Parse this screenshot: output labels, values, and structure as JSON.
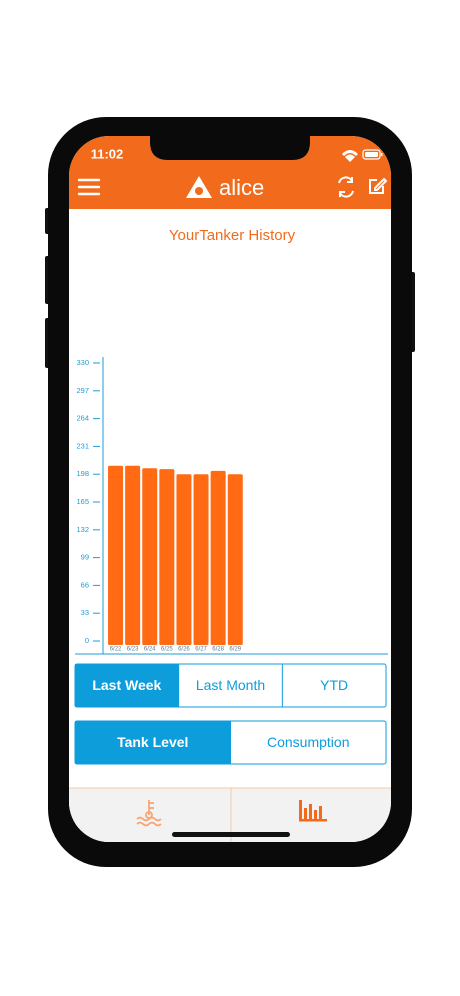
{
  "status_bar": {
    "time": "11:02"
  },
  "header": {
    "title": "alice"
  },
  "chart_data": {
    "type": "bar",
    "title": "YourTanker History",
    "categories": [
      "6/22",
      "6/23",
      "6/24",
      "6/25",
      "6/26",
      "6/27",
      "6/28",
      "6/29"
    ],
    "values": [
      208,
      208,
      205,
      204,
      198,
      198,
      202,
      198
    ],
    "color": "#ff6a13",
    "axis_color": "#1e9bd7",
    "ylim": [
      0,
      330
    ],
    "yticks": [
      0,
      33,
      66,
      99,
      132,
      165,
      198,
      231,
      264,
      297,
      330
    ]
  },
  "period_tabs": {
    "items": [
      "Last Week",
      "Last Month",
      "YTD"
    ],
    "selected_index": 0
  },
  "mode_tabs": {
    "items": [
      "Tank Level",
      "Consumption"
    ],
    "selected_index": 0
  }
}
